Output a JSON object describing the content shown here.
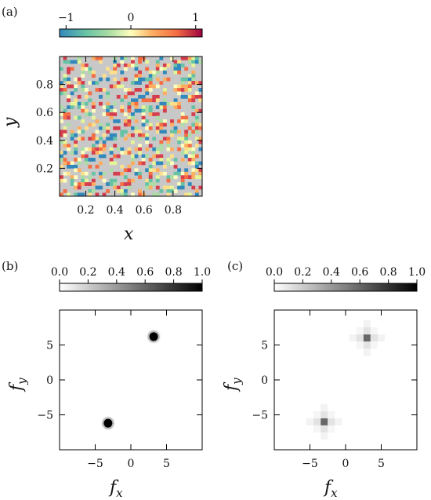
{
  "chart_data": [
    {
      "panel": "(a)",
      "type": "heatmap",
      "xlabel": "x",
      "ylabel": "y",
      "xlim": [
        0,
        1
      ],
      "ylim": [
        0,
        1
      ],
      "xticks": [
        "0.2",
        "0.4",
        "0.6",
        "0.8"
      ],
      "yticks": [
        "0.2",
        "0.4",
        "0.6",
        "0.8"
      ],
      "colorbar": {
        "position": "top",
        "colormap": "Spectral_r",
        "range": [
          -1,
          1
        ],
        "ticks": [
          "−1",
          "0",
          "1"
        ]
      },
      "background_color": "#c8c8c8",
      "description_values": "sparse random pixels with values in [-1, 1] arranged along diagonal stripes"
    },
    {
      "panel": "(b)",
      "type": "heatmap",
      "xlabel": "f_x",
      "ylabel": "f_y",
      "xlim": [
        -10,
        10
      ],
      "ylim": [
        -10,
        10
      ],
      "xticks": [
        "−5",
        "0",
        "5"
      ],
      "yticks": [
        "5",
        "0",
        "−5"
      ],
      "colorbar": {
        "position": "top",
        "colormap": "Greys",
        "range": [
          0,
          1
        ],
        "ticks": [
          "0.0",
          "0.2",
          "0.4",
          "0.6",
          "0.8",
          "1.0"
        ]
      },
      "peaks": [
        {
          "x": 3.2,
          "y": 6.2,
          "value": 1.0
        },
        {
          "x": -3.2,
          "y": -6.2,
          "value": 1.0
        }
      ]
    },
    {
      "panel": "(c)",
      "type": "heatmap",
      "xlabel": "f_x",
      "ylabel": "f_y",
      "xlim": [
        -10,
        10
      ],
      "ylim": [
        -10,
        10
      ],
      "xticks": [
        "−5",
        "0",
        "5"
      ],
      "yticks": [
        "5",
        "0",
        "−5"
      ],
      "colorbar": {
        "position": "top",
        "colormap": "Greys",
        "range": [
          0,
          1
        ],
        "ticks": [
          "0.0",
          "0.2",
          "0.4",
          "0.6",
          "0.8",
          "1.0"
        ]
      },
      "peaks": [
        {
          "x": 3,
          "y": 6,
          "value": 0.65
        },
        {
          "x": -3,
          "y": -6,
          "value": 0.65
        }
      ]
    }
  ],
  "labels": {
    "a": "(a)",
    "b": "(b)",
    "c": "(c)",
    "x": "x",
    "y": "y",
    "fx_base": "f",
    "fx_sub": "x",
    "fy_base": "f",
    "fy_sub": "y"
  }
}
